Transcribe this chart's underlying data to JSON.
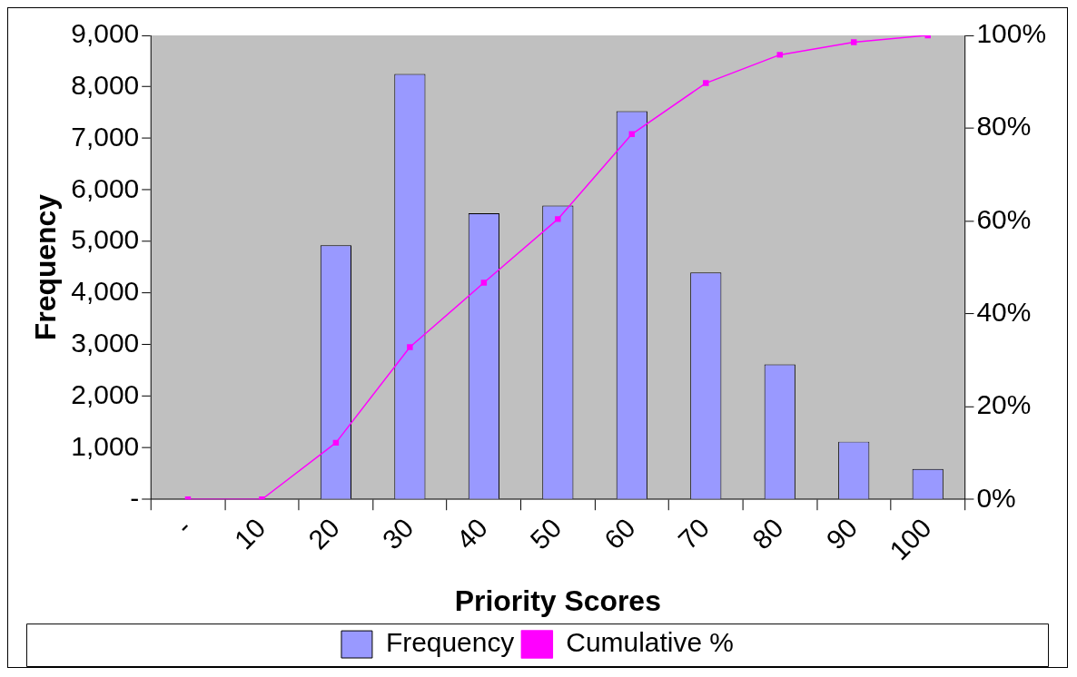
{
  "chart_data": {
    "type": "bar",
    "xlabel": "Priority Scores",
    "ylabel": "Frequency",
    "categories": [
      "-",
      "10",
      "20",
      "30",
      "40",
      "50",
      "60",
      "70",
      "80",
      "90",
      "100"
    ],
    "series": [
      {
        "name": "Frequency",
        "color": "#9999ff",
        "values": [
          null,
          null,
          4930,
          8250,
          5550,
          5700,
          7530,
          4400,
          2620,
          1120,
          590
        ]
      },
      {
        "name": "Cumulative %",
        "type": "line",
        "axis": "y2",
        "color": "#ff00ff",
        "marker": "square",
        "values": [
          0,
          0,
          12.2,
          32.8,
          46.7,
          60.4,
          78.7,
          89.7,
          95.8,
          98.5,
          100
        ]
      }
    ],
    "ylim": [
      0,
      9000
    ],
    "yticks": [
      {
        "value": 0,
        "label": "-"
      },
      {
        "value": 1000,
        "label": "1,000"
      },
      {
        "value": 2000,
        "label": "2,000"
      },
      {
        "value": 3000,
        "label": "3,000"
      },
      {
        "value": 4000,
        "label": "4,000"
      },
      {
        "value": 5000,
        "label": "5,000"
      },
      {
        "value": 6000,
        "label": "6,000"
      },
      {
        "value": 7000,
        "label": "7,000"
      },
      {
        "value": 8000,
        "label": "8,000"
      },
      {
        "value": 9000,
        "label": "9,000"
      }
    ],
    "y2lim": [
      0,
      100
    ],
    "y2ticks": [
      {
        "value": 0,
        "label": "0%"
      },
      {
        "value": 20,
        "label": "20%"
      },
      {
        "value": 40,
        "label": "40%"
      },
      {
        "value": 60,
        "label": "60%"
      },
      {
        "value": 80,
        "label": "80%"
      },
      {
        "value": 100,
        "label": "100%"
      }
    ],
    "grid": false,
    "legend": "bottom"
  }
}
